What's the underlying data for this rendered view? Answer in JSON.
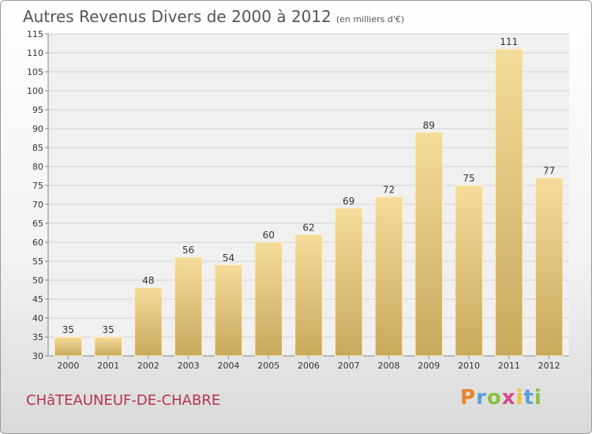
{
  "chart_data": {
    "type": "bar",
    "title": "Autres Revenus Divers de 2000 à 2012",
    "subtitle": "(en milliers d'€)",
    "categories": [
      "2000",
      "2001",
      "2002",
      "2003",
      "2004",
      "2005",
      "2006",
      "2007",
      "2008",
      "2009",
      "2010",
      "2011",
      "2012"
    ],
    "values": [
      35,
      35,
      48,
      56,
      54,
      60,
      62,
      69,
      72,
      89,
      75,
      111,
      77
    ],
    "ylim": [
      30,
      115
    ],
    "yticks": [
      30,
      35,
      40,
      45,
      50,
      55,
      60,
      65,
      70,
      75,
      80,
      85,
      90,
      95,
      100,
      105,
      110,
      115
    ],
    "grid": true,
    "bar_color_light": "#f5dc9a",
    "bar_color_dark": "#c8a95c"
  },
  "place": "CHâTEAUNEUF-DE-CHABRE",
  "logo": {
    "letters": [
      "P",
      "r",
      "o",
      "x",
      "i",
      "t",
      "i"
    ]
  }
}
